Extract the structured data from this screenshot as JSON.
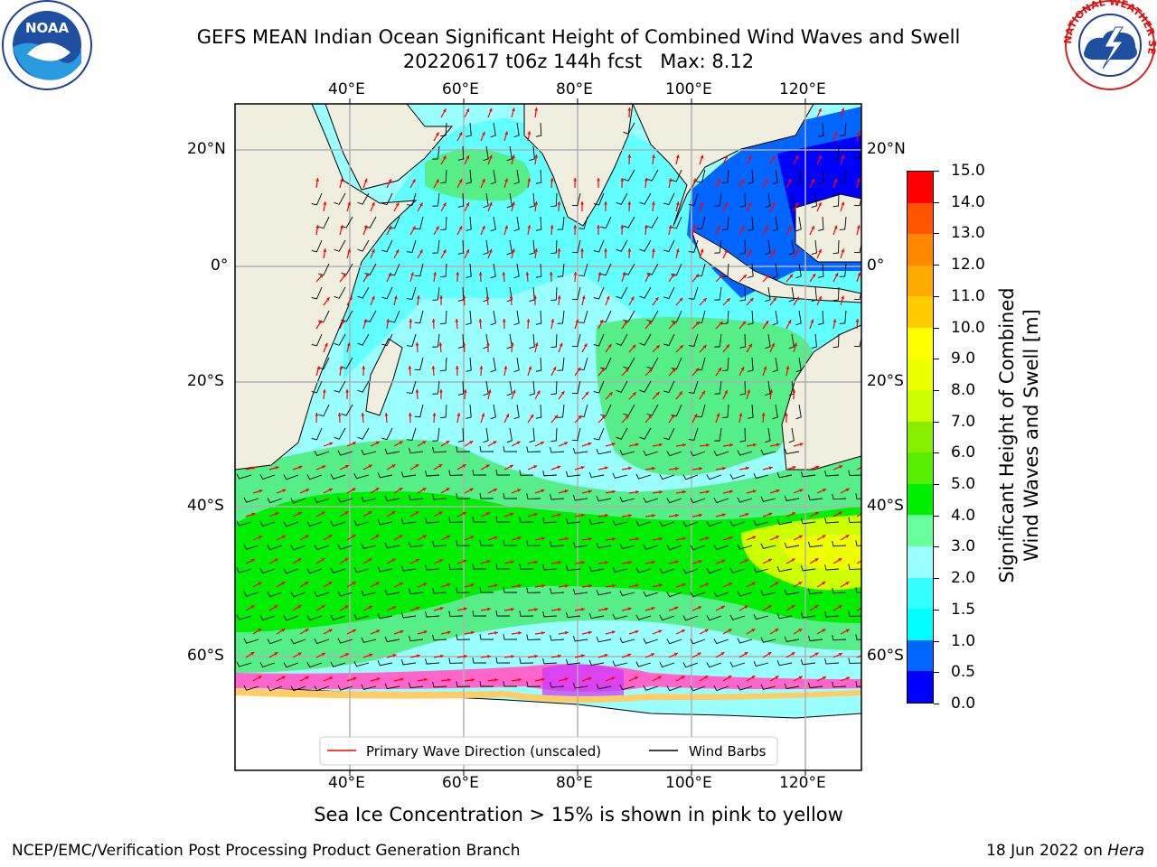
{
  "header": {
    "title_line1": "GEFS MEAN Indian Ocean Significant Height of Combined Wind Waves and Swell",
    "title_line2": "20220617 t06z 144h fcst   Max: 8.12"
  },
  "logos": {
    "noaa_text": "NOAA",
    "noaa_ring": "NATIONAL OCEANIC AND ATMOSPHERIC ADMINISTRATION · U.S. DEPARTMENT OF COMMERCE",
    "nws_ring": "NATIONAL WEATHER SERVICE"
  },
  "map": {
    "lon_ticks": [
      "40°E",
      "60°E",
      "80°E",
      "100°E",
      "120°E"
    ],
    "lat_ticks": [
      "20°N",
      "0°",
      "20°S",
      "40°S",
      "60°S"
    ],
    "colors": {
      "land": "#efeedf",
      "ice": "#ff66cc",
      "grid": "#b0b0b0"
    }
  },
  "legend": {
    "wave_dir": "Primary Wave Direction (unscaled)",
    "wind_barbs": "Wind Barbs"
  },
  "colorbar": {
    "label_line1": "Significant Height of Combined",
    "label_line2": "Wind Waves and Swell [m]",
    "ticks": [
      "15.0",
      "14.0",
      "13.0",
      "12.0",
      "11.0",
      "10.0",
      "9.0",
      "8.0",
      "7.0",
      "6.0",
      "5.0",
      "4.0",
      "3.0",
      "2.0",
      "1.5",
      "1.0",
      "0.5",
      "0.0"
    ],
    "colors": [
      "#0000ff",
      "#0066ff",
      "#00ffff",
      "#33ffff",
      "#99ffff",
      "#66ff99",
      "#00ee00",
      "#55ee00",
      "#88ee00",
      "#ccff00",
      "#eeff00",
      "#ffff00",
      "#ffcc00",
      "#ffaa00",
      "#ff8800",
      "#ff5500",
      "#ff0000"
    ]
  },
  "subcaption": "Sea Ice Concentration > 15% is shown in pink to yellow",
  "footer": {
    "left": "NCEP/EMC/Verification Post Processing Product Generation Branch",
    "right_prefix": "18 Jun 2022 on ",
    "right_host": "Hera"
  }
}
